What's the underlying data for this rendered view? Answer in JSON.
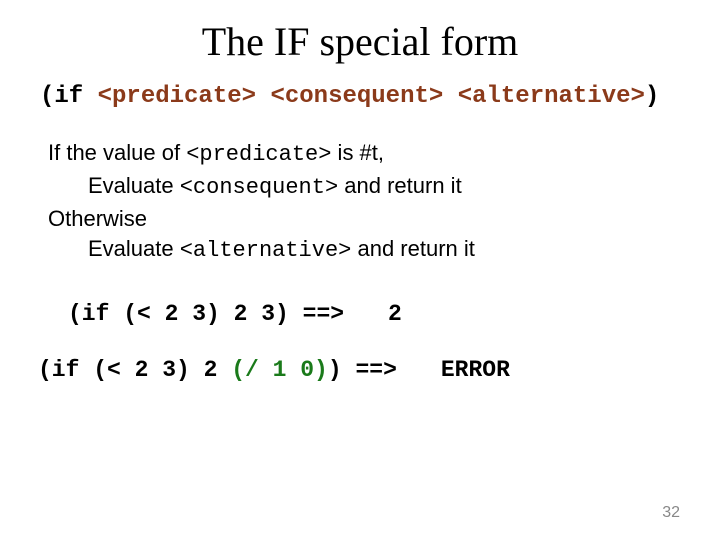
{
  "title": "The IF special form",
  "syntax": {
    "open": "(if ",
    "predicate": "<predicate>",
    "space1": " ",
    "consequent": "<consequent>",
    "space2": " ",
    "alternative": "<alternative>",
    "close": ")"
  },
  "body": {
    "l1_a": "If the value of ",
    "l1_pred": "<predicate>",
    "l1_b": " is #t,",
    "l2_a": "Evaluate ",
    "l2_cons": "<consequent>",
    "l2_b": "  and return it",
    "l3": "Otherwise",
    "l4_a": "Evaluate ",
    "l4_alt": "<alternative>",
    "l4_b": "  and return it"
  },
  "ex1": {
    "code": "(if (< 2 3) 2 3) ==>",
    "result": "2"
  },
  "ex2": {
    "pre": "(if (< 2 3) 2 ",
    "green": "(/ 1 0)",
    "post": ") ==>",
    "result": "ERROR"
  },
  "colors": {
    "brown": "#8b3a1a",
    "green": "#1a7a1a",
    "text": "#000000",
    "pagenum": "#888888",
    "bg": "#ffffff"
  },
  "page_number": "32"
}
